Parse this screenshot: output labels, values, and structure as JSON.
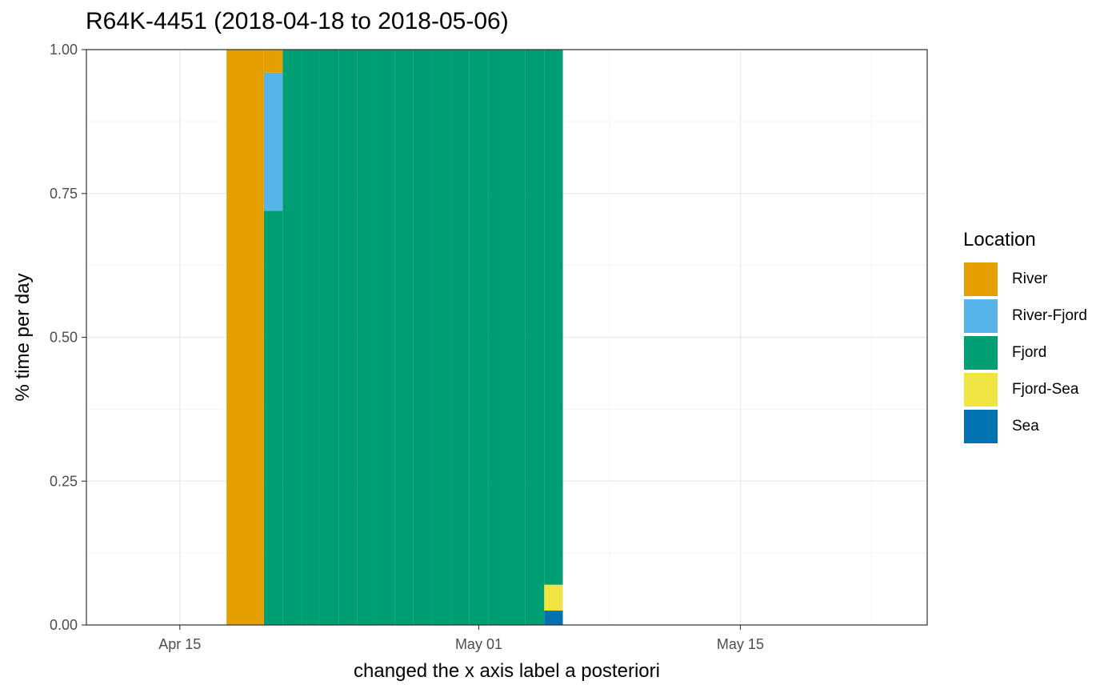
{
  "chart_data": {
    "type": "bar",
    "stacked": true,
    "title": "R64K-4451 (2018-04-18 to 2018-05-06)",
    "xlabel": "changed the x axis label a posteriori",
    "ylabel": "% time per day",
    "ylim": [
      0,
      1
    ],
    "yticks": [
      "0.00",
      "0.25",
      "0.50",
      "0.75",
      "1.00"
    ],
    "xlim": [
      "2018-04-10",
      "2018-05-25"
    ],
    "xticks": [
      {
        "date": "2018-04-15",
        "label": "Apr 15"
      },
      {
        "date": "2018-05-01",
        "label": "May 01"
      },
      {
        "date": "2018-05-15",
        "label": "May 15"
      }
    ],
    "grid": true,
    "legend": {
      "title": "Location",
      "position": "right"
    },
    "series": [
      {
        "name": "River",
        "color": "#E69F00",
        "points": [
          {
            "date": "2018-04-18",
            "value": 1.0
          },
          {
            "date": "2018-04-19",
            "value": 1.0
          },
          {
            "date": "2018-04-20",
            "value": 0.04
          }
        ]
      },
      {
        "name": "River-Fjord",
        "color": "#56B4E9",
        "points": [
          {
            "date": "2018-04-20",
            "value": 0.24
          }
        ]
      },
      {
        "name": "Fjord",
        "color": "#009E73",
        "points": [
          {
            "date": "2018-04-20",
            "value": 0.72
          },
          {
            "date": "2018-04-21",
            "value": 1.0
          },
          {
            "date": "2018-04-22",
            "value": 1.0
          },
          {
            "date": "2018-04-23",
            "value": 1.0
          },
          {
            "date": "2018-04-24",
            "value": 1.0
          },
          {
            "date": "2018-04-25",
            "value": 1.0
          },
          {
            "date": "2018-04-26",
            "value": 1.0
          },
          {
            "date": "2018-04-27",
            "value": 1.0
          },
          {
            "date": "2018-04-28",
            "value": 1.0
          },
          {
            "date": "2018-04-29",
            "value": 1.0
          },
          {
            "date": "2018-04-30",
            "value": 1.0
          },
          {
            "date": "2018-05-01",
            "value": 1.0
          },
          {
            "date": "2018-05-02",
            "value": 1.0
          },
          {
            "date": "2018-05-03",
            "value": 1.0
          },
          {
            "date": "2018-05-04",
            "value": 1.0
          },
          {
            "date": "2018-05-05",
            "value": 0.93
          }
        ]
      },
      {
        "name": "Fjord-Sea",
        "color": "#F0E442",
        "points": [
          {
            "date": "2018-05-05",
            "value": 0.045
          }
        ]
      },
      {
        "name": "Sea",
        "color": "#0072B2",
        "points": [
          {
            "date": "2018-05-05",
            "value": 0.025
          }
        ]
      }
    ]
  }
}
